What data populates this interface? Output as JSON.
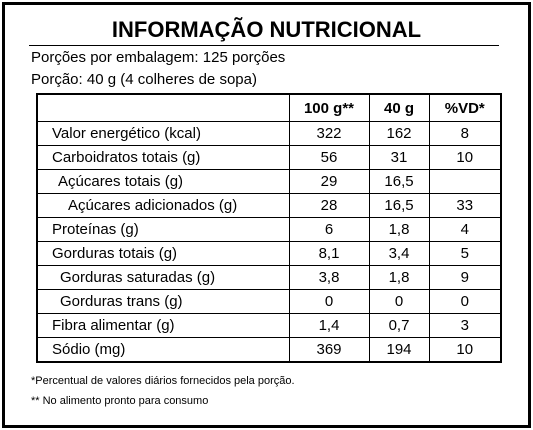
{
  "header": {
    "title": "INFORMAÇÃO NUTRICIONAL",
    "servings": "Porções por embalagem: 125 porções",
    "portion": "Porção: 40 g (4 colheres de sopa)"
  },
  "table": {
    "columns": [
      "100 g**",
      "40 g",
      "%VD*"
    ],
    "rows": [
      [
        "Valor energético (kcal)",
        "322",
        "162",
        "8"
      ],
      [
        "Carboidratos totais (g)",
        "56",
        "31",
        "10"
      ],
      [
        "Açúcares totais (g)",
        "29",
        "16,5",
        null
      ],
      [
        "Açúcares adicionados (g)",
        "28",
        "16,5",
        "33"
      ],
      [
        "Proteínas (g)",
        "6",
        "1,8",
        "4"
      ],
      [
        "Gorduras totais (g)",
        "8,1",
        "3,4",
        "5"
      ],
      [
        "Gorduras saturadas (g)",
        "3,8",
        "1,8",
        "9"
      ],
      [
        "Gorduras trans (g)",
        "0",
        "0",
        "0"
      ],
      [
        "Fibra alimentar (g)",
        "1,4",
        "0,7",
        "3"
      ],
      [
        "Sódio (mg)",
        "369",
        "194",
        "10"
      ]
    ]
  },
  "footnotes": [
    "*Percentual de valores diários fornecidos pela porção.",
    "** No alimento pronto para consumo"
  ]
}
